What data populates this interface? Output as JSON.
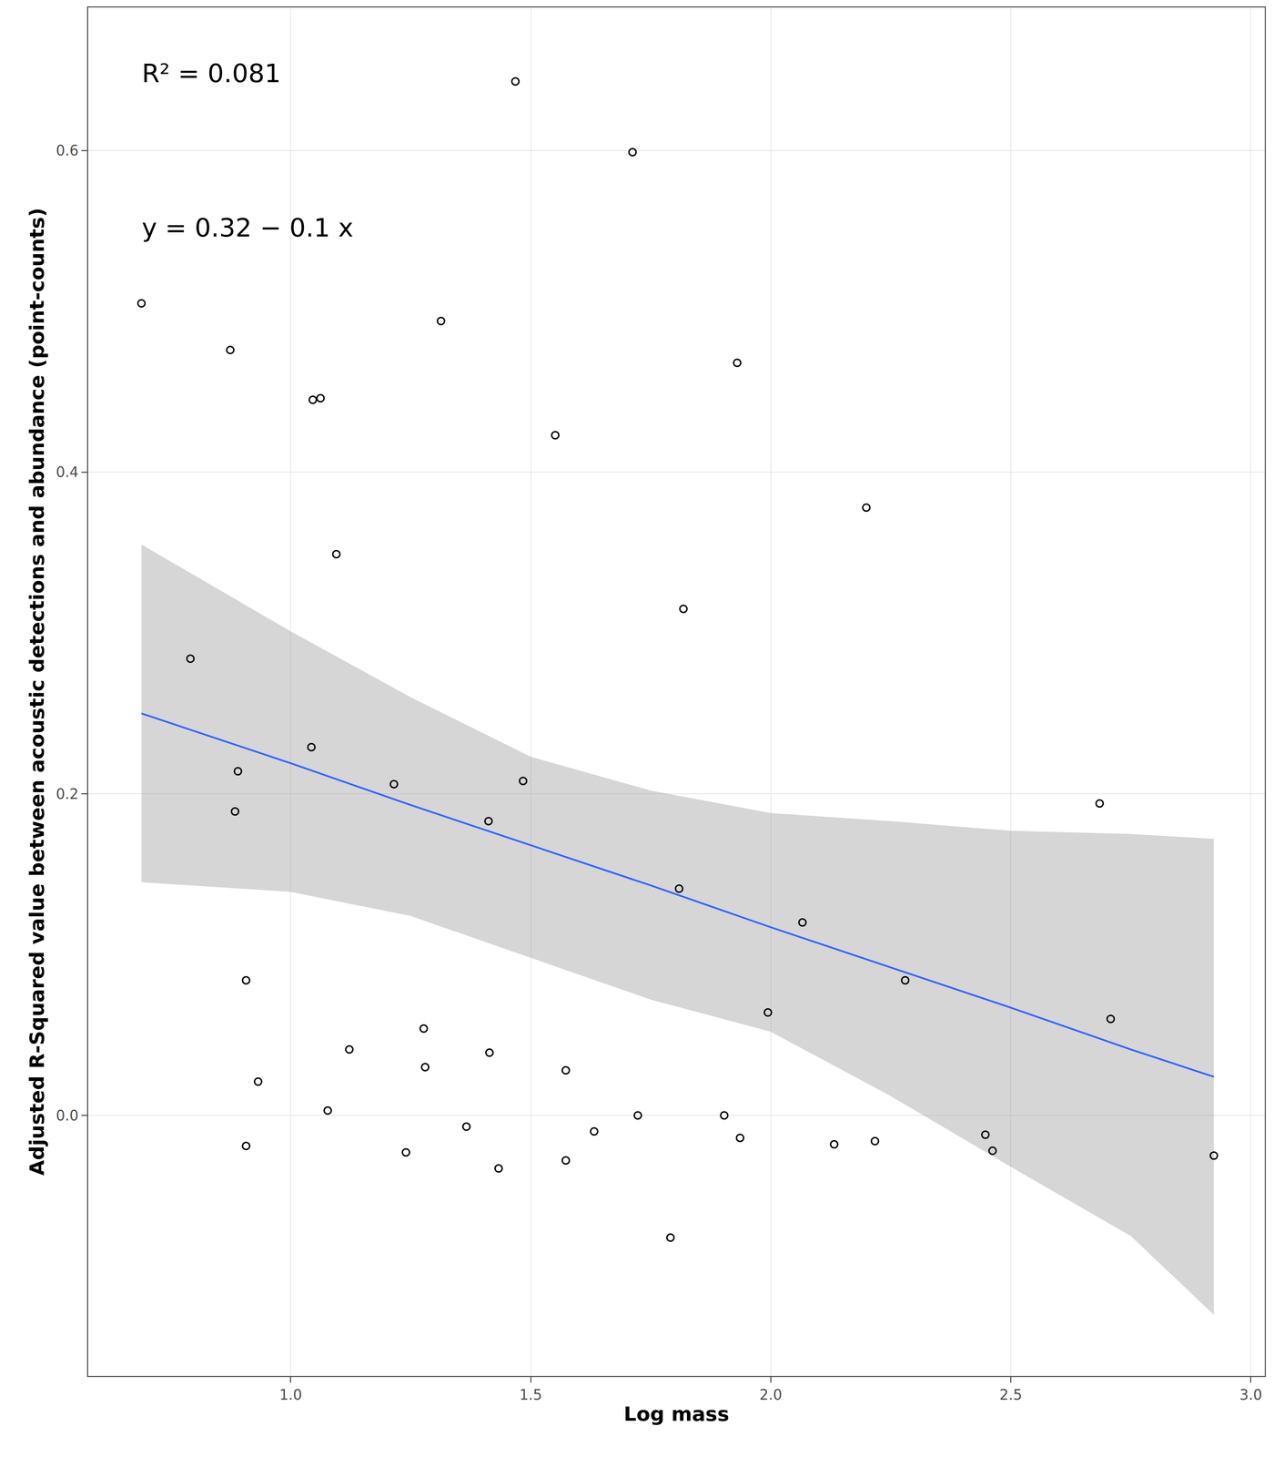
{
  "chart_data": {
    "type": "scatter",
    "xlabel": "Log mass",
    "ylabel": "Adjusted R-Squared value between acoustic detections and abundance (point-counts)",
    "annotations": [
      "R² = 0.081",
      "y = 0.32 − 0.1 x"
    ],
    "xlim": [
      0.578,
      3.029
    ],
    "ylim": [
      -0.162,
      0.689
    ],
    "xticks": [
      {
        "value": 1,
        "label": "1.0"
      },
      1.5,
      {
        "value": 2,
        "label": "2.0"
      },
      2.5,
      {
        "value": 3,
        "label": "3.0"
      }
    ],
    "yticks": [
      {
        "value": 0,
        "label": "0.0"
      },
      0.2,
      0.4,
      0.6
    ],
    "grid": true,
    "series": [
      {
        "type": "scatter",
        "marker": "open circle",
        "color": "#000000",
        "x": [
          0.689,
          0.791,
          0.874,
          0.89,
          0.884,
          0.907,
          0.907,
          0.932,
          1.046,
          1.062,
          1.043,
          1.077,
          1.095,
          1.122,
          1.215,
          1.24,
          1.277,
          1.28,
          1.313,
          1.366,
          1.412,
          1.414,
          1.433,
          1.468,
          1.484,
          1.551,
          1.573,
          1.573,
          1.632,
          1.712,
          1.723,
          1.791,
          1.809,
          1.818,
          1.903,
          1.93,
          1.936,
          1.994,
          2.066,
          2.132,
          2.199,
          2.217,
          2.28,
          2.447,
          2.462,
          2.685,
          2.708,
          2.923
        ],
        "values": [
          0.505,
          0.284,
          0.476,
          0.214,
          0.189,
          0.084,
          -0.019,
          0.021,
          0.445,
          0.446,
          0.229,
          0.003,
          0.349,
          0.041,
          0.206,
          -0.023,
          0.054,
          0.03,
          0.494,
          -0.007,
          0.183,
          0.039,
          -0.033,
          0.643,
          0.208,
          0.423,
          0.028,
          -0.028,
          -0.01,
          0.599,
          0.0,
          -0.076,
          0.141,
          0.315,
          0.0,
          0.468,
          -0.014,
          0.064,
          0.12,
          -0.018,
          0.378,
          -0.016,
          0.084,
          -0.012,
          -0.022,
          0.194,
          0.06,
          -0.025
        ]
      },
      {
        "type": "line",
        "color": "#3366ff",
        "x": [
          0.689,
          1.0,
          1.25,
          1.5,
          1.75,
          2.0,
          2.25,
          2.5,
          2.75,
          2.923
        ],
        "values": [
          0.25,
          0.219,
          0.193,
          0.168,
          0.143,
          0.117,
          0.092,
          0.067,
          0.041,
          0.024
        ],
        "lower": [
          0.145,
          0.139,
          0.124,
          0.098,
          0.072,
          0.052,
          0.012,
          -0.032,
          -0.075,
          -0.124
        ],
        "upper": [
          0.355,
          0.301,
          0.26,
          0.223,
          0.202,
          0.188,
          0.183,
          0.177,
          0.175,
          0.172
        ]
      }
    ]
  }
}
